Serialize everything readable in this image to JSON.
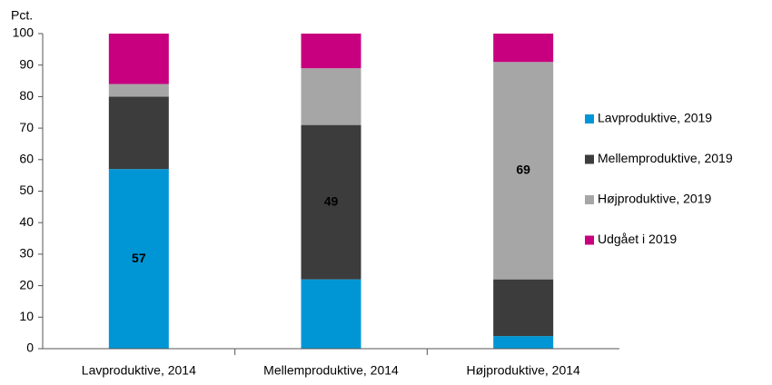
{
  "chart_data": {
    "type": "stacked_bar",
    "ylabel": "Pct.",
    "categories": [
      "Lavproduktive, 2014",
      "Mellemproduktive, 2014",
      "Højproduktive, 2014"
    ],
    "series": [
      {
        "name": "Lavproduktive, 2019",
        "color": "#0096d6",
        "values": [
          57,
          22,
          4
        ],
        "value_labels": [
          "57",
          null,
          null
        ]
      },
      {
        "name": "Mellemproduktive, 2019",
        "color": "#3c3c3c",
        "values": [
          23,
          49,
          18
        ],
        "value_labels": [
          null,
          "49",
          null
        ]
      },
      {
        "name": "Højproduktive, 2019",
        "color": "#a6a6a6",
        "values": [
          4,
          18,
          69
        ],
        "value_labels": [
          null,
          null,
          "69"
        ]
      },
      {
        "name": "Udgået i 2019",
        "color": "#c8007f",
        "values": [
          16,
          11,
          9
        ],
        "value_labels": [
          null,
          null,
          null
        ]
      }
    ],
    "ylim": [
      0,
      100
    ],
    "yticks": [
      0,
      10,
      20,
      30,
      40,
      50,
      60,
      70,
      80,
      90,
      100
    ],
    "grid": false,
    "legend": "right"
  }
}
